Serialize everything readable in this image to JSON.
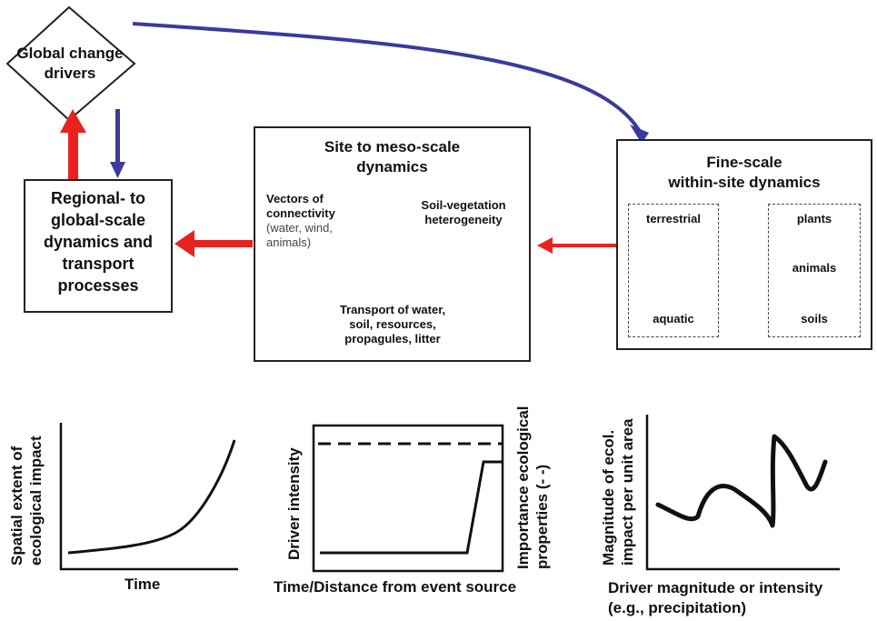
{
  "global_drivers": {
    "line1": "Global change",
    "line2": "drivers"
  },
  "regional_box": {
    "line1": "Regional- to",
    "line2": "global-scale",
    "line3": "dynamics and",
    "line4": "transport",
    "line5": "processes"
  },
  "site_box": {
    "title1": "Site to meso-scale",
    "title2": "dynamics",
    "vectors1": "Vectors of",
    "vectors2": "connectivity",
    "vectors_detail1": "(water, wind,",
    "vectors_detail2": "animals)",
    "soilveg1": "Soil-vegetation",
    "soilveg2": "heterogeneity",
    "transport1": "Transport of water,",
    "transport2": "soil, resources,",
    "transport3": "propagules, litter"
  },
  "fine_box": {
    "title1": "Fine-scale",
    "title2": "within-site dynamics",
    "terrestrial": "terrestrial",
    "aquatic": "aquatic",
    "plants": "plants",
    "animals": "animals",
    "soils": "soils"
  },
  "panel1": {
    "ylabel1": "Spatial extent of",
    "ylabel2": "ecological impact",
    "xlabel": "Time"
  },
  "panel2": {
    "ylabel": "Driver intensity",
    "ylabel_right1": "Importance ecological",
    "ylabel_right2": "properties (- -)",
    "xlabel": "Time/Distance from event source"
  },
  "panel3": {
    "ylabel1": "Magnitude of ecol.",
    "ylabel2": "impact per unit area",
    "xlabel1": "Driver magnitude or intensity",
    "xlabel2": "(e.g., precipitation)"
  },
  "colors": {
    "red_arrow": "#e8231e",
    "blue_arrow": "#3a3a9e",
    "outline": "#222222"
  }
}
